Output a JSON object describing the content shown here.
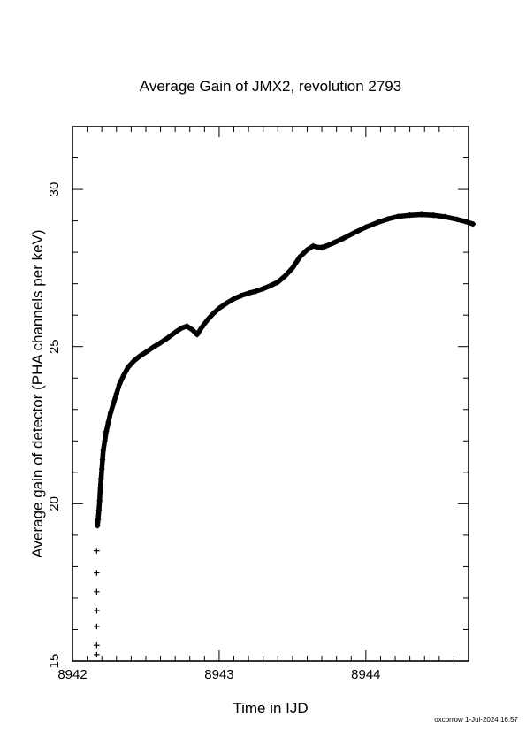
{
  "chart_data": {
    "type": "scatter",
    "title": "Average Gain of JMX2, revolution 2793",
    "xlabel": "Time in IJD",
    "ylabel": "Average gain of detector (PHA channels per keV)",
    "xlim": [
      8942.0,
      8944.7
    ],
    "ylim": [
      15,
      32
    ],
    "xticks": [
      8942,
      8943,
      8944
    ],
    "yticks": [
      15,
      20,
      25,
      30
    ],
    "marker": "plus",
    "grid": false,
    "series": [
      {
        "points": [
          [
            8942.165,
            15.2
          ],
          [
            8942.165,
            15.5
          ],
          [
            8942.165,
            16.1
          ],
          [
            8942.165,
            16.6
          ],
          [
            8942.165,
            17.2
          ],
          [
            8942.165,
            17.8
          ],
          [
            8942.165,
            18.5
          ],
          [
            8942.17,
            19.3
          ],
          [
            8942.175,
            19.5
          ],
          [
            8942.18,
            19.8
          ],
          [
            8942.185,
            20.1
          ],
          [
            8942.19,
            20.5
          ],
          [
            8942.195,
            20.8
          ],
          [
            8942.2,
            21.1
          ],
          [
            8942.205,
            21.4
          ],
          [
            8942.21,
            21.7
          ],
          [
            8942.22,
            22.0
          ],
          [
            8942.23,
            22.3
          ],
          [
            8942.245,
            22.6
          ],
          [
            8942.26,
            22.9
          ],
          [
            8942.28,
            23.2
          ],
          [
            8942.3,
            23.5
          ],
          [
            8942.32,
            23.8
          ],
          [
            8942.35,
            24.1
          ],
          [
            8942.38,
            24.35
          ],
          [
            8942.42,
            24.55
          ],
          [
            8942.46,
            24.7
          ],
          [
            8942.5,
            24.82
          ],
          [
            8942.55,
            24.98
          ],
          [
            8942.6,
            25.12
          ],
          [
            8942.65,
            25.28
          ],
          [
            8942.7,
            25.45
          ],
          [
            8942.74,
            25.58
          ],
          [
            8942.78,
            25.65
          ],
          [
            8942.82,
            25.52
          ],
          [
            8942.85,
            25.38
          ],
          [
            8942.88,
            25.6
          ],
          [
            8942.92,
            25.85
          ],
          [
            8942.96,
            26.05
          ],
          [
            8943.0,
            26.22
          ],
          [
            8943.05,
            26.38
          ],
          [
            8943.1,
            26.52
          ],
          [
            8943.15,
            26.62
          ],
          [
            8943.2,
            26.7
          ],
          [
            8943.25,
            26.76
          ],
          [
            8943.3,
            26.84
          ],
          [
            8943.35,
            26.94
          ],
          [
            8943.4,
            27.05
          ],
          [
            8943.45,
            27.25
          ],
          [
            8943.5,
            27.5
          ],
          [
            8943.55,
            27.85
          ],
          [
            8943.6,
            28.08
          ],
          [
            8943.64,
            28.2
          ],
          [
            8943.68,
            28.15
          ],
          [
            8943.72,
            28.18
          ],
          [
            8943.78,
            28.3
          ],
          [
            8943.85,
            28.45
          ],
          [
            8943.92,
            28.62
          ],
          [
            8944.0,
            28.8
          ],
          [
            8944.08,
            28.95
          ],
          [
            8944.15,
            29.06
          ],
          [
            8944.22,
            29.14
          ],
          [
            8944.3,
            29.18
          ],
          [
            8944.38,
            29.2
          ],
          [
            8944.46,
            29.18
          ],
          [
            8944.54,
            29.13
          ],
          [
            8944.62,
            29.05
          ],
          [
            8944.68,
            28.98
          ],
          [
            8944.73,
            28.9
          ]
        ]
      }
    ]
  },
  "footer": "oxcorrow  1-Jul-2024 16:57"
}
